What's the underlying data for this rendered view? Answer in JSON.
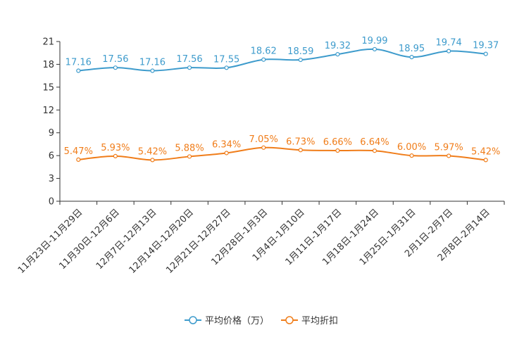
{
  "chart_data": {
    "type": "line",
    "title": "",
    "xlabel": "",
    "ylabel": "",
    "ylim": [
      0,
      21
    ],
    "yticks": [
      0,
      3,
      6,
      9,
      12,
      15,
      18,
      21
    ],
    "grid": false,
    "legend_position": "bottom-center",
    "categories": [
      "11月23日-11月29日",
      "11月30日-12月6日",
      "12月7日-12月13日",
      "12月14日-12月20日",
      "12月21日-12月27日",
      "12月28日-1月3日",
      "1月4日-1月10日",
      "1月11日-1月17日",
      "1月18日-1月24日",
      "1月25日-1月31日",
      "2月1日-2月7日",
      "2月8日-2月14日"
    ],
    "series": [
      {
        "name": "平均价格（万）",
        "color": "#3d9bcc",
        "values": [
          17.16,
          17.56,
          17.16,
          17.56,
          17.55,
          18.62,
          18.59,
          19.32,
          19.99,
          18.95,
          19.74,
          19.37
        ],
        "labels": [
          "17.16",
          "17.56",
          "17.16",
          "17.56",
          "17.55",
          "18.62",
          "18.59",
          "19.32",
          "19.99",
          "18.95",
          "19.74",
          "19.37"
        ]
      },
      {
        "name": "平均折扣",
        "color": "#f07d1a",
        "values": [
          5.47,
          5.93,
          5.42,
          5.88,
          6.34,
          7.05,
          6.73,
          6.66,
          6.64,
          6.0,
          5.97,
          5.42
        ],
        "labels": [
          "5.47%",
          "5.93%",
          "5.42%",
          "5.88%",
          "6.34%",
          "7.05%",
          "6.73%",
          "6.66%",
          "6.64%",
          "6.00%",
          "5.97%",
          "5.42%"
        ]
      }
    ]
  }
}
